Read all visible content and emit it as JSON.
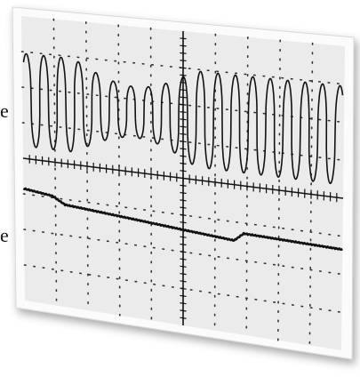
{
  "labels": [
    "e",
    "e"
  ]
}
